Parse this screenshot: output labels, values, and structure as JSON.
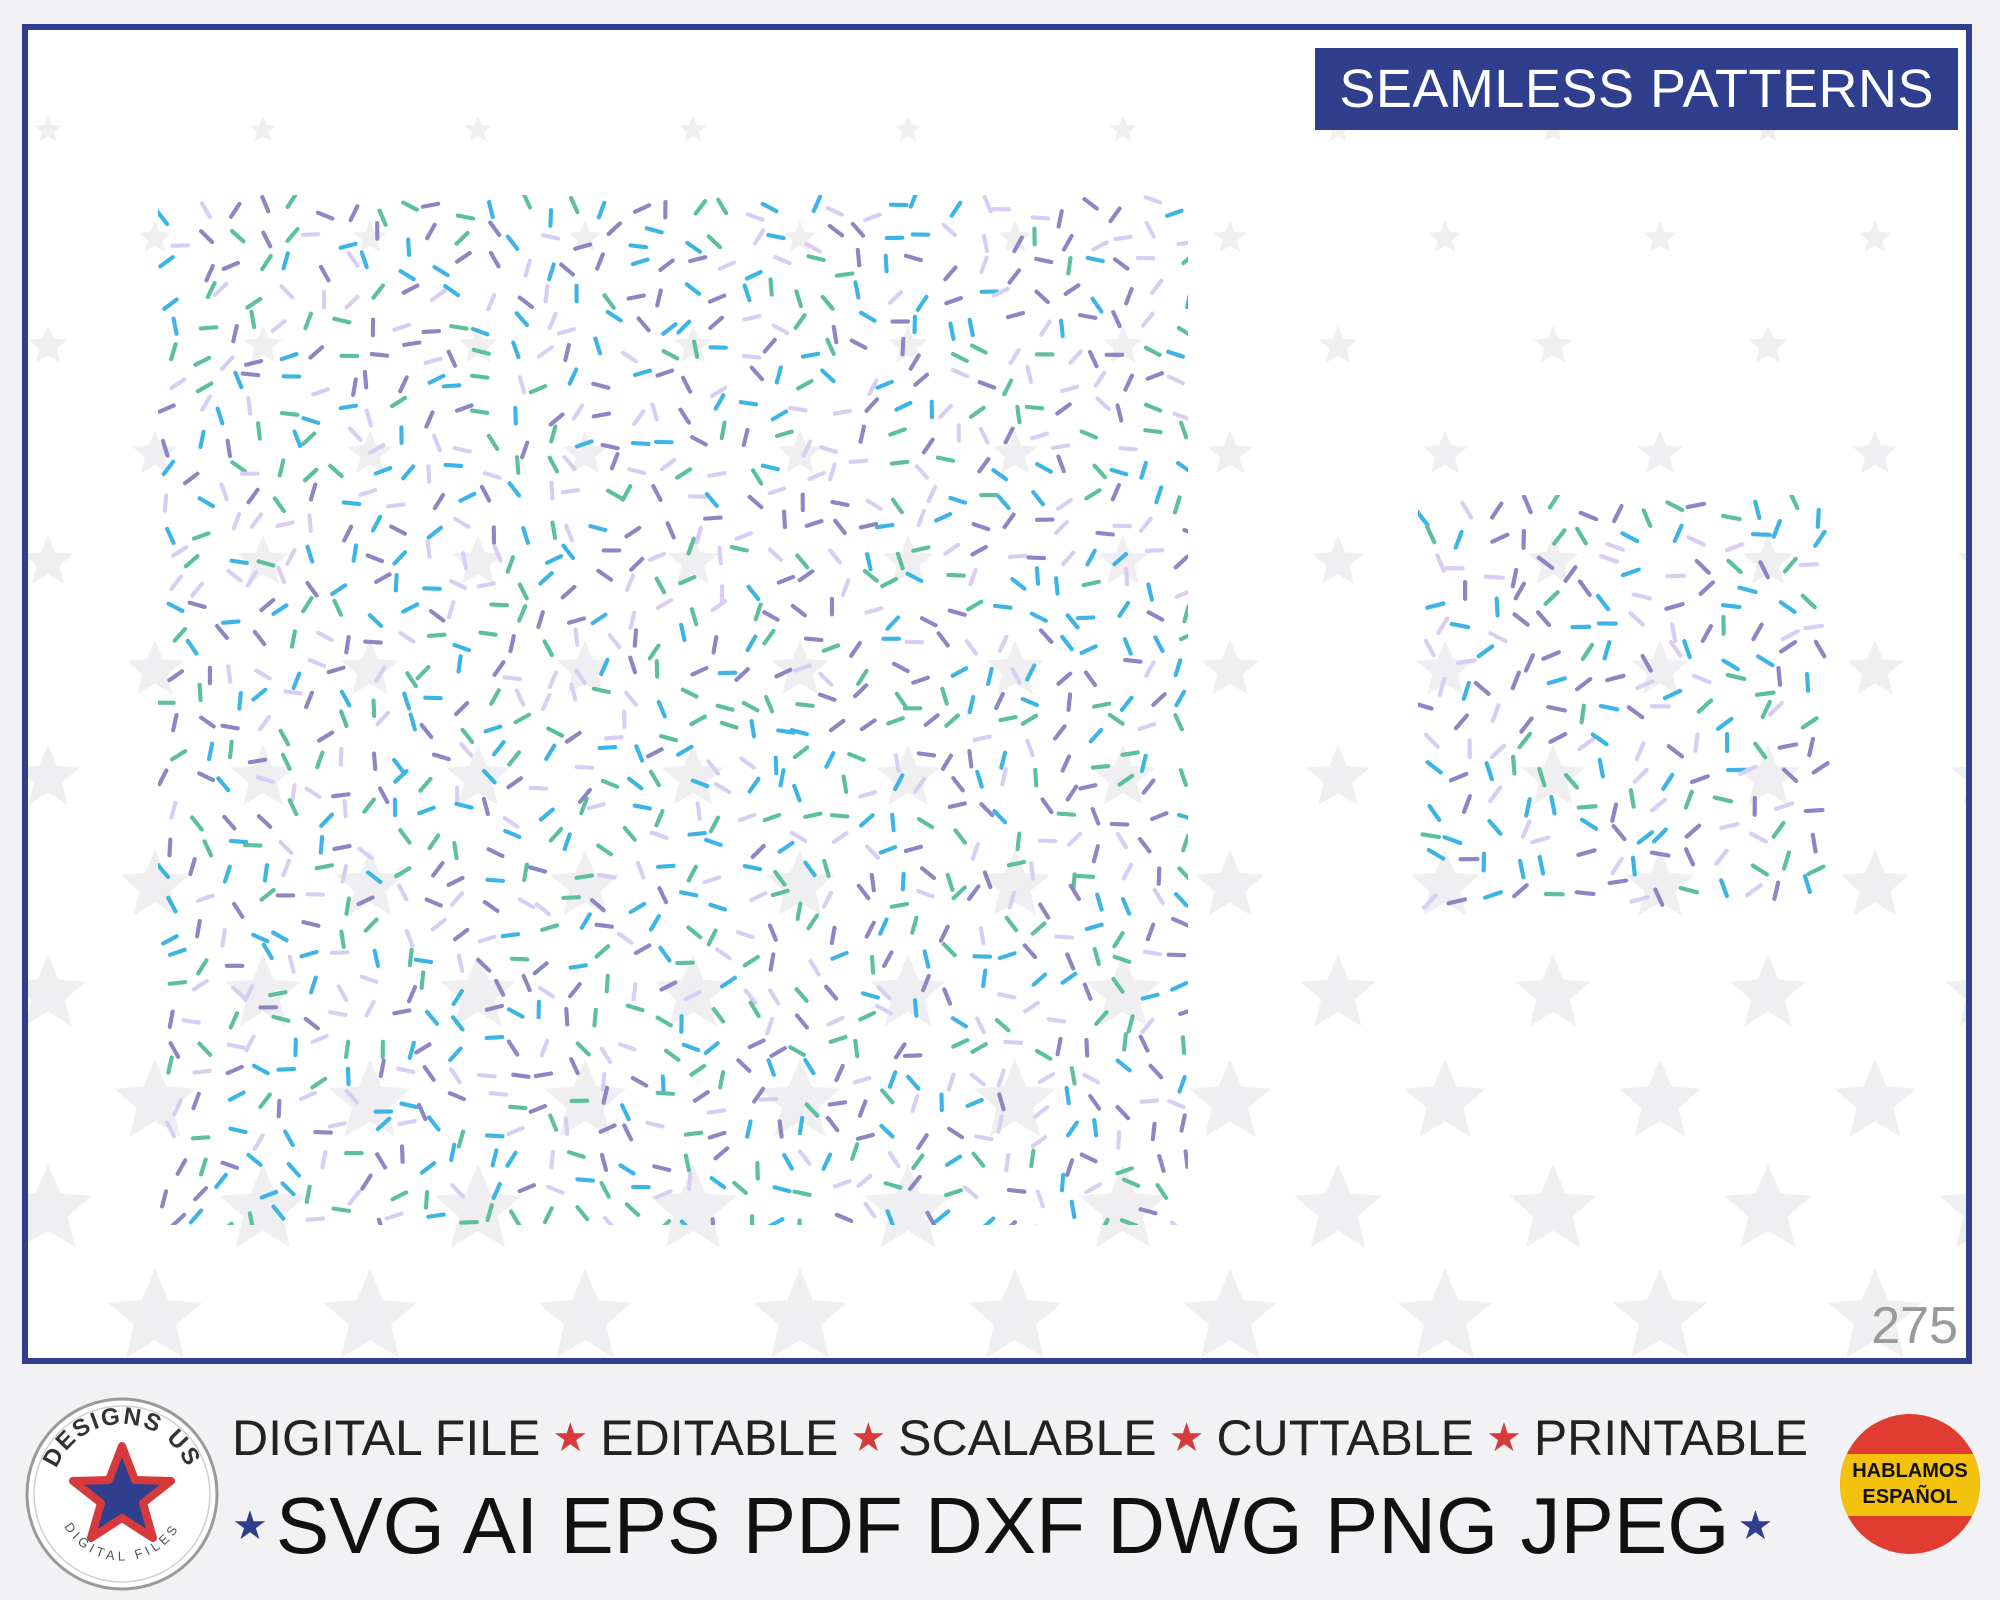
{
  "header": {
    "title": "SEAMLESS PATTERNS"
  },
  "item_number": "275",
  "pattern": {
    "colors": [
      "#3cb4e6",
      "#5cbf9e",
      "#8c86c4",
      "#d9cdf5"
    ],
    "shape": "sprinkles"
  },
  "footer": {
    "logo": {
      "top_text": "DESIGNS US",
      "bottom_text": "DIGITAL FILES",
      "icon": "star-icon"
    },
    "features": [
      "DIGITAL FILE",
      "EDITABLE",
      "SCALABLE",
      "CUTTABLE",
      "PRINTABLE"
    ],
    "formats": "SVG AI EPS PDF DXF DWG PNG JPEG",
    "badge": {
      "line1": "HABLAMOS",
      "line2": "ESPAÑOL"
    },
    "colors": {
      "navy": "#2f3f8e",
      "red": "#d63a3a",
      "yellow": "#f4c20d"
    }
  }
}
